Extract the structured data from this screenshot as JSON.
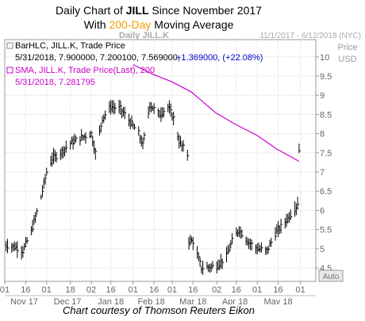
{
  "header": {
    "line1_prefix": "Daily Chart of ",
    "ticker": "JILL",
    "line1_suffix": " Since November 2017",
    "line2_prefix": "With ",
    "highlight": "200-Day",
    "line2_suffix": " Moving Average"
  },
  "caption": "Chart courtesy of Thomson Reuters Eikon",
  "colors": {
    "price": "#000000",
    "sma": "#cc00cc",
    "change": "#0000cc",
    "grid": "#cccccc",
    "highlight": "#f0a000"
  },
  "chart_data": {
    "type": "line",
    "watermark": "Daily JILL.K",
    "date_range": "11/1/2017 - 6/12/2018 (NYC)",
    "price_axis_title": [
      "Price",
      "USD"
    ],
    "auto_label": "Auto",
    "legend": [
      {
        "label": "BarHLC, JILL.K, Trade Price",
        "values": "5/31/2018, 7.900000, 7.200100, 7.569000,",
        "change": "+1.369000, (+22.08%)"
      },
      {
        "label": "SMA, JILL.K, Trade Price(Last), 200",
        "values": "5/31/2018, 7.281795"
      }
    ],
    "x_ticks": [
      "01",
      "16",
      "01",
      "18",
      "02",
      "16",
      "01",
      "16",
      "01",
      "16",
      "02",
      "16",
      "01",
      "16",
      "01"
    ],
    "x_month_labels": [
      "Nov 17",
      "Dec 17",
      "Jan 18",
      "Feb 18",
      "Mar 18",
      "Apr 18",
      "May 18"
    ],
    "y_ticks": [
      "4.5",
      "5",
      "5.5",
      "6",
      "6.5",
      "7",
      "7.5",
      "8",
      "8.5",
      "9",
      "9.5",
      "10"
    ],
    "ylim": [
      4.15,
      10.45
    ],
    "last_price": 7.569,
    "series": [
      {
        "name": "BarHLC, JILL.K, Trade Price",
        "kind": "hlc_bar",
        "anchors": [
          [
            "2017-11-01",
            5.1
          ],
          [
            "2017-11-08",
            5.05
          ],
          [
            "2017-11-14",
            4.95
          ],
          [
            "2017-11-20",
            5.45
          ],
          [
            "2017-11-27",
            6.35
          ],
          [
            "2017-12-01",
            7.0
          ],
          [
            "2017-12-05",
            7.35
          ],
          [
            "2017-12-11",
            7.5
          ],
          [
            "2017-12-18",
            7.75
          ],
          [
            "2017-12-26",
            7.9
          ],
          [
            "2018-01-02",
            8.0
          ],
          [
            "2018-01-05",
            7.5
          ],
          [
            "2018-01-10",
            8.4
          ],
          [
            "2018-01-16",
            8.7
          ],
          [
            "2018-01-23",
            8.65
          ],
          [
            "2018-01-30",
            8.3
          ],
          [
            "2018-02-05",
            8.0
          ],
          [
            "2018-02-08",
            7.7
          ],
          [
            "2018-02-13",
            8.75
          ],
          [
            "2018-02-20",
            8.5
          ],
          [
            "2018-02-26",
            8.7
          ],
          [
            "2018-03-02",
            8.4
          ],
          [
            "2018-03-06",
            7.8
          ],
          [
            "2018-03-12",
            7.45
          ],
          [
            "2018-03-16",
            5.2
          ],
          [
            "2018-03-22",
            4.5
          ],
          [
            "2018-04-02",
            4.55
          ],
          [
            "2018-04-09",
            4.8
          ],
          [
            "2018-04-13",
            5.2
          ],
          [
            "2018-04-18",
            5.5
          ],
          [
            "2018-04-24",
            5.2
          ],
          [
            "2018-05-01",
            5.0
          ],
          [
            "2018-05-08",
            4.95
          ],
          [
            "2018-05-14",
            5.4
          ],
          [
            "2018-05-21",
            5.7
          ],
          [
            "2018-05-29",
            6.1
          ],
          [
            "2018-05-30",
            6.2
          ],
          [
            "2018-05-31",
            7.57
          ]
        ],
        "gaps_after": [
          "2018-03-12"
        ]
      },
      {
        "name": "SMA, JILL.K, Trade Price(Last), 200",
        "kind": "line",
        "start": "2018-02-01",
        "points": [
          [
            "2018-02-01",
            9.8
          ],
          [
            "2018-02-15",
            9.55
          ],
          [
            "2018-03-01",
            9.35
          ],
          [
            "2018-03-15",
            9.08
          ],
          [
            "2018-04-01",
            8.55
          ],
          [
            "2018-04-15",
            8.25
          ],
          [
            "2018-05-01",
            7.95
          ],
          [
            "2018-05-15",
            7.6
          ],
          [
            "2018-05-31",
            7.28
          ]
        ]
      }
    ]
  }
}
